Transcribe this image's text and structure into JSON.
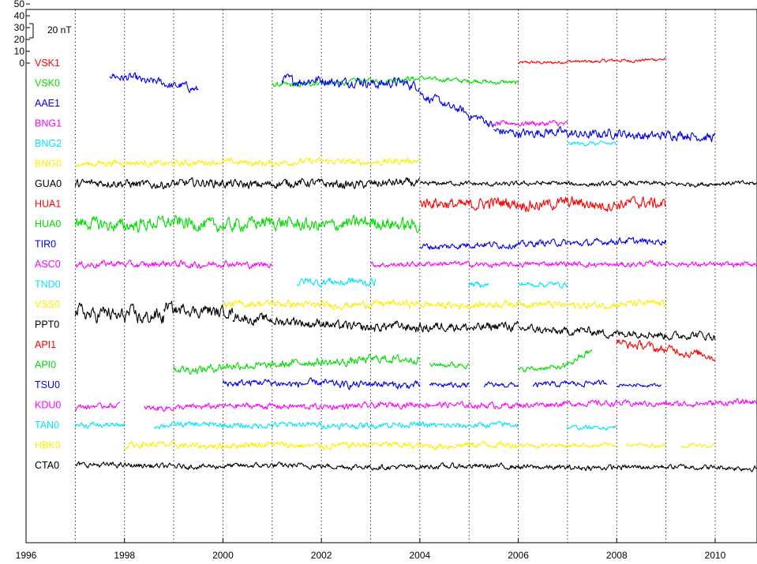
{
  "chart_data": {
    "type": "line",
    "title": "",
    "xlabel": "",
    "ylabel": "",
    "xlim": [
      1996,
      2010.85
    ],
    "x_ticks": [
      "1996",
      "1998",
      "2000",
      "2002",
      "2004",
      "2006",
      "2008",
      "2010"
    ],
    "x_tick_values": [
      1996,
      1998,
      2000,
      2002,
      2004,
      2006,
      2008,
      2010
    ],
    "y_ticks": [
      "50",
      "40",
      "30",
      "20",
      "10",
      "0"
    ],
    "y_tick_values": [
      50,
      40,
      30,
      20,
      10,
      0
    ],
    "scale_bar_label": "20 nT",
    "scale_bar_nT": 20,
    "grid": "vertical dotted lines at every year",
    "y_unit": "nT",
    "stations": [
      {
        "name": "VSK1",
        "color": "#ff0000",
        "segments": [
          [
            2006.0,
            2009.0,
            0,
            3,
            1.0
          ]
        ]
      },
      {
        "name": "VSK0",
        "color": "#00dd00",
        "segments": [
          [
            2001.0,
            2004.0,
            -2,
            4,
            1.6
          ],
          [
            2004.0,
            2006.0,
            4,
            0,
            1.4
          ]
        ]
      },
      {
        "name": "AAE1",
        "color": "#0000ee",
        "segments": [
          [
            1997.7,
            1999.5,
            24,
            12,
            2.5
          ],
          [
            2001.2,
            2004.0,
            20,
            16,
            3.0
          ],
          [
            2004.0,
            2005.5,
            8,
            -18,
            2.5
          ],
          [
            2005.5,
            2010.0,
            -24,
            -28,
            2.8
          ]
        ]
      },
      {
        "name": "BNG1",
        "color": "#ff00ff",
        "segments": [
          [
            2005.5,
            2007.0,
            0,
            0,
            1.6
          ]
        ]
      },
      {
        "name": "BNG2",
        "color": "#00e5ff",
        "segments": [
          [
            2007.0,
            2008.0,
            0,
            0,
            1.2
          ]
        ]
      },
      {
        "name": "BNG0",
        "color": "#ffee00",
        "segments": [
          [
            1997.0,
            2004.0,
            0,
            2,
            2.0
          ]
        ]
      },
      {
        "name": "GUA0",
        "color": "#000000",
        "segments": [
          [
            1997.0,
            2004.0,
            0,
            0,
            2.6
          ],
          [
            2004.0,
            2010.85,
            0,
            0,
            1.4
          ]
        ]
      },
      {
        "name": "HUA1",
        "color": "#ff0000",
        "segments": [
          [
            2004.0,
            2009.0,
            0,
            0,
            3.5
          ]
        ]
      },
      {
        "name": "HUA0",
        "color": "#00dd00",
        "segments": [
          [
            1997.0,
            2004.0,
            0,
            0,
            4.0
          ]
        ]
      },
      {
        "name": "TIR0",
        "color": "#0000ee",
        "segments": [
          [
            2004.0,
            2009.0,
            -2,
            3,
            2.0
          ]
        ]
      },
      {
        "name": "ASC0",
        "color": "#ff00ff",
        "segments": [
          [
            1997.0,
            2001.0,
            0,
            0,
            2.0
          ],
          [
            2003.0,
            2010.85,
            0,
            0,
            1.6
          ]
        ]
      },
      {
        "name": "TND0",
        "color": "#00e5ff",
        "segments": [
          [
            2001.5,
            2003.1,
            2,
            2,
            2.5
          ],
          [
            2005.0,
            2005.4,
            0,
            0,
            1.6
          ],
          [
            2006.0,
            2007.0,
            0,
            0,
            1.6
          ]
        ]
      },
      {
        "name": "VSS0",
        "color": "#ffee00",
        "segments": [
          [
            2000.0,
            2009.0,
            0,
            0,
            2.2
          ]
        ]
      },
      {
        "name": "PPT0",
        "color": "#000000",
        "segments": [
          [
            1997.0,
            1998.8,
            10,
            6,
            4.5
          ],
          [
            1998.8,
            2000.2,
            14,
            10,
            3.5
          ],
          [
            2000.2,
            2002.2,
            6,
            0,
            2.8
          ],
          [
            2002.2,
            2006.0,
            -2,
            -2,
            2.8
          ],
          [
            2006.0,
            2010.0,
            -4,
            -10,
            2.5
          ]
        ]
      },
      {
        "name": "API1",
        "color": "#ff0000",
        "segments": [
          [
            2008.0,
            2010.0,
            2,
            -10,
            2.5
          ]
        ]
      },
      {
        "name": "API0",
        "color": "#00dd00",
        "segments": [
          [
            1999.0,
            2004.0,
            -4,
            6,
            2.5
          ],
          [
            2004.2,
            2005.0,
            0,
            0,
            1.6
          ],
          [
            2006.0,
            2006.9,
            -4,
            -2,
            1.5
          ],
          [
            2006.9,
            2007.5,
            -2,
            12,
            2.0
          ]
        ]
      },
      {
        "name": "TSU0",
        "color": "#0000ee",
        "segments": [
          [
            2000.0,
            2004.0,
            2,
            0,
            2.2
          ],
          [
            2004.2,
            2005.0,
            0,
            0,
            1.6
          ],
          [
            2005.3,
            2006.0,
            0,
            0,
            1.4
          ],
          [
            2006.3,
            2007.8,
            0,
            2,
            1.6
          ],
          [
            2008.0,
            2008.9,
            0,
            0,
            1.0
          ]
        ]
      },
      {
        "name": "KDU0",
        "color": "#ff00ff",
        "segments": [
          [
            1997.0,
            1997.9,
            -2,
            0,
            1.6
          ],
          [
            1998.4,
            2010.85,
            -2,
            2,
            1.8
          ]
        ]
      },
      {
        "name": "TAN0",
        "color": "#00e5ff",
        "segments": [
          [
            1997.0,
            1998.0,
            0,
            0,
            1.6
          ],
          [
            1998.6,
            2006.0,
            0,
            0,
            1.8
          ],
          [
            2007.0,
            2008.0,
            -2,
            -2,
            1.2
          ]
        ]
      },
      {
        "name": "HBK0",
        "color": "#ffee00",
        "segments": [
          [
            1998.0,
            2006.0,
            0,
            0,
            2.0
          ],
          [
            2006.0,
            2008.0,
            0,
            0,
            1.4
          ],
          [
            2008.2,
            2009.0,
            0,
            0,
            1.2
          ],
          [
            2009.3,
            2010.0,
            0,
            0,
            1.2
          ]
        ]
      },
      {
        "name": "CTA0",
        "color": "#000000",
        "segments": [
          [
            1997.0,
            2010.85,
            0,
            -2,
            1.6
          ]
        ]
      }
    ]
  }
}
